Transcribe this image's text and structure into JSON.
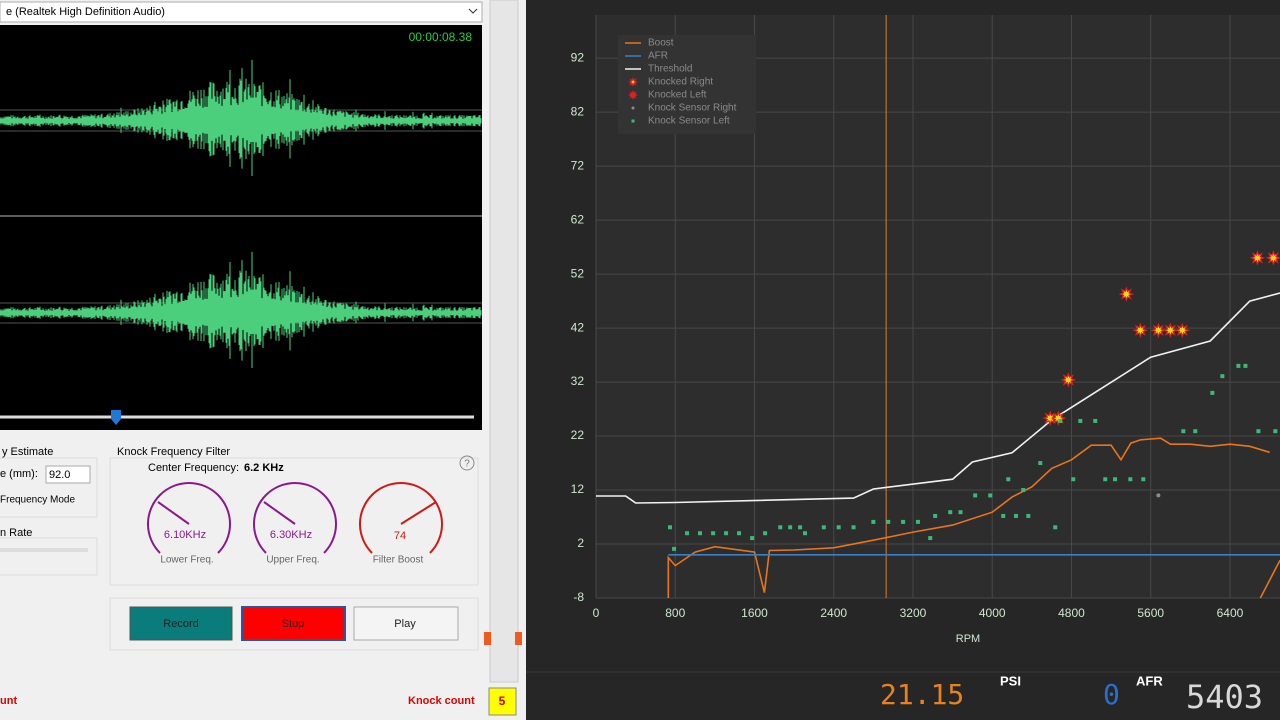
{
  "audio": {
    "device": "e (Realtek High Definition Audio)",
    "time": "00:00:08.38"
  },
  "estimate": {
    "title": "y Estimate",
    "bore_label": "e (mm):",
    "bore_value": "92.0",
    "mode": "Frequency Mode",
    "rate": "n Rate"
  },
  "filter": {
    "title": "Knock Frequency Filter",
    "center_label": "Center Frequency:",
    "center_value": "6.2 KHz",
    "help": "?",
    "gauges": [
      {
        "value": "6.10KHz",
        "label": "Lower Freq."
      },
      {
        "value": "6.30KHz",
        "label": "Upper Freq."
      },
      {
        "value": "74",
        "label": "Filter Boost"
      }
    ]
  },
  "buttons": [
    "Record",
    "Stop",
    "Play"
  ],
  "status": {
    "left": "unt",
    "knock_label": "Knock count",
    "knock_value": "5"
  },
  "readout": {
    "psi": "21.15",
    "psi_label": "PSI",
    "afr": "0",
    "afr_label": "AFR",
    "rpm": "5403"
  },
  "chart_data": {
    "type": "line",
    "x_label": "RPM",
    "xlim": [
      0,
      6905
    ],
    "ylim": [
      -8,
      100
    ],
    "xticks": [
      0,
      800,
      1600,
      2400,
      3200,
      4000,
      4800,
      5600,
      6400
    ],
    "yticks": [
      -8,
      2,
      12,
      22,
      32,
      42,
      52,
      62,
      72,
      82,
      92
    ],
    "grid": true,
    "legend": "top-left",
    "cursor_x": 2929,
    "cursor_color": "#e07a2a",
    "series": [
      {
        "name": "Boost",
        "color": "#e8751a",
        "mark": "line",
        "x": [
          730,
          730,
          800,
          1000,
          1200,
          1600,
          1700,
          1750,
          2000,
          2400,
          2800,
          3200,
          3600,
          4000,
          4200,
          4400,
          4600,
          4800,
          5000,
          5200,
          5300,
          5400,
          5500,
          5700,
          5800,
          6000,
          6200,
          6400,
          6600,
          6800,
          null,
          6707,
          6905
        ],
        "values": [
          -8,
          -0.5,
          -2,
          0.5,
          1.5,
          0.5,
          -7,
          0.8,
          0.9,
          1.3,
          2.7,
          4.2,
          5.5,
          7.9,
          10.7,
          12.6,
          16,
          17.6,
          20.3,
          20.3,
          17.6,
          20.7,
          21.3,
          21.6,
          20.5,
          20.5,
          20.1,
          20.5,
          20.1,
          19,
          null,
          -8,
          -1
        ]
      },
      {
        "name": "AFR",
        "color": "#3a7fc4",
        "mark": "line",
        "x": [
          730,
          6905
        ],
        "values": [
          0,
          0
        ]
      },
      {
        "name": "Threshold",
        "color": "#f2f2f2",
        "mark": "line",
        "x": [
          0,
          300,
          400,
          800,
          2600,
          2800,
          3600,
          3800,
          4200,
          4600,
          5600,
          6200,
          6600,
          6905
        ],
        "values": [
          10.9,
          10.9,
          9.6,
          9.7,
          10.5,
          12.2,
          14,
          17.2,
          18.9,
          25,
          36.6,
          39.6,
          47,
          48.5
        ]
      },
      {
        "name": "Knocked Right",
        "color": "#ffd21f",
        "mark": "star",
        "x": [
          4585,
          4667,
          4768,
          5354,
          5495,
          5677,
          5798,
          5919,
          6677,
          6838
        ],
        "values": [
          25.3,
          25.3,
          32.4,
          48.3,
          41.6,
          41.6,
          41.6,
          41.6,
          55,
          55
        ]
      },
      {
        "name": "Knocked Left",
        "color": "#e32020",
        "mark": "star",
        "x": [],
        "values": []
      },
      {
        "name": "Knock Sensor Right",
        "color": "#8c8c8c",
        "mark": "dot",
        "x": [
          5677
        ],
        "values": [
          11
        ]
      },
      {
        "name": "Knock Sensor Left",
        "color": "#3cb878",
        "mark": "square",
        "x": [
          747,
          788,
          919,
          1050,
          1182,
          1313,
          1444,
          1576,
          1707,
          1860,
          1960,
          2060,
          2110,
          2300,
          2450,
          2600,
          2800,
          2950,
          3100,
          3250,
          3374,
          3424,
          3576,
          3680,
          3828,
          3980,
          4111,
          4162,
          4240,
          4313,
          4364,
          4485,
          4636,
          4687,
          4818,
          4889,
          5040,
          5141,
          5240,
          5394,
          5525,
          5929,
          6050,
          6222,
          6323,
          6485,
          6556,
          6687,
          6858
        ],
        "values": [
          5.1,
          1.1,
          4,
          4,
          4,
          4,
          4,
          3.1,
          4,
          5.1,
          5.1,
          5.1,
          4,
          5.1,
          5.1,
          5.1,
          6.1,
          6.1,
          6.1,
          6.1,
          3.1,
          7.2,
          7.9,
          7.9,
          11,
          11,
          7.2,
          14,
          7.2,
          12,
          7.2,
          17,
          5.1,
          24.8,
          14,
          24.8,
          24.8,
          14,
          14,
          14,
          14,
          22.9,
          22.9,
          30,
          33.1,
          35,
          35,
          22.9,
          22.9
        ]
      }
    ]
  }
}
